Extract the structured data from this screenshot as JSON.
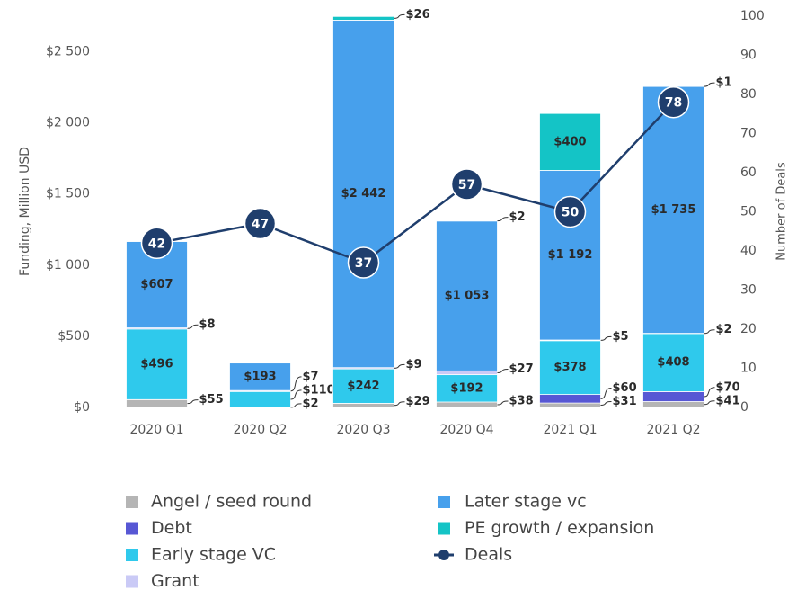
{
  "chart_data": {
    "type": "bar",
    "categories": [
      "2020 Q1",
      "2020 Q2",
      "2020 Q3",
      "2020 Q4",
      "2021 Q1",
      "2021 Q2"
    ],
    "series": [
      {
        "name": "Angel / seed round",
        "color": "#b5b5b5",
        "values": [
          55,
          2,
          29,
          38,
          31,
          41
        ],
        "value_labels": [
          "$55",
          "$2",
          "$29",
          "$38",
          "$31",
          "$41"
        ]
      },
      {
        "name": "Debt",
        "color": "#5757d4",
        "values": [
          null,
          null,
          null,
          null,
          60,
          70
        ],
        "value_labels": [
          null,
          null,
          null,
          null,
          "$60",
          "$70"
        ]
      },
      {
        "name": "Early stage VC",
        "color": "#2fc9ec",
        "values": [
          496,
          110,
          242,
          192,
          378,
          408
        ],
        "value_labels": [
          "$496",
          "$110",
          "$242",
          "$192",
          "$378",
          "$408"
        ]
      },
      {
        "name": "Grant",
        "color": "#cacaf6",
        "values": [
          8,
          7,
          9,
          27,
          5,
          2
        ],
        "value_labels": [
          "$8",
          "$7",
          "$9",
          "$27",
          "$5",
          "$2"
        ]
      },
      {
        "name": "Later stage vc",
        "color": "#47a0ec",
        "values": [
          607,
          193,
          2442,
          1053,
          1192,
          1735
        ],
        "value_labels": [
          "$607",
          "$193",
          "$2 442",
          "$1 053",
          "$1 192",
          "$1 735"
        ]
      },
      {
        "name": "PE growth / expansion",
        "color": "#14c4c6",
        "values": [
          null,
          null,
          26,
          2,
          400,
          1
        ],
        "value_labels": [
          null,
          null,
          "$26",
          "$2",
          "$400",
          "$1"
        ]
      },
      {
        "name": "Deals",
        "type": "line",
        "axis": "y2",
        "color": "#1f3e6d",
        "values": [
          42,
          47,
          37,
          57,
          50,
          78
        ]
      }
    ],
    "ylabel": "Funding, Million USD",
    "y2label": "Number of Deals",
    "ylim": [
      0,
      2750
    ],
    "yticks": [
      {
        "value": 0,
        "label": "$0"
      },
      {
        "value": 500,
        "label": "$500"
      },
      {
        "value": 1000,
        "label": "$1 000"
      },
      {
        "value": 1500,
        "label": "$1 500"
      },
      {
        "value": 2000,
        "label": "$2 000"
      },
      {
        "value": 2500,
        "label": "$2 500"
      }
    ],
    "y2lim": [
      0,
      100
    ],
    "y2ticks": [
      0,
      10,
      20,
      30,
      40,
      50,
      60,
      70,
      80,
      90,
      100
    ]
  }
}
